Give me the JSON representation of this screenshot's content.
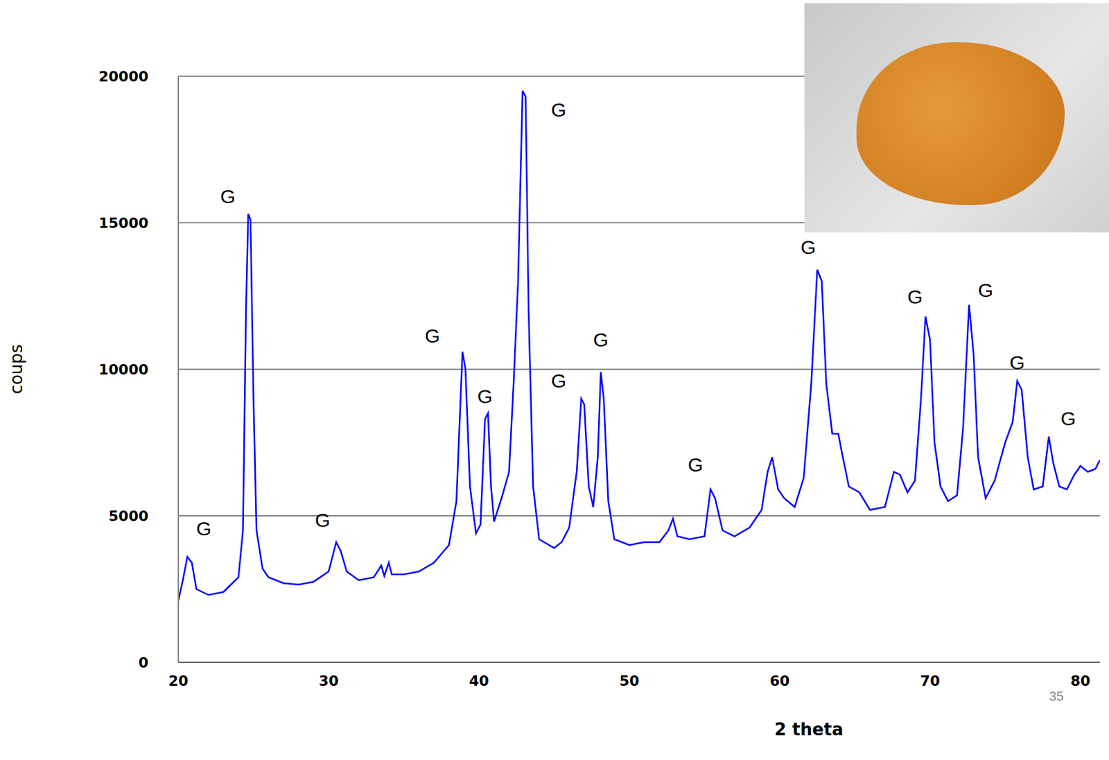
{
  "chart_data": {
    "type": "line",
    "x_label": "2 theta",
    "y_label": "coups",
    "page_number": "35",
    "xlim": [
      20,
      81.3
    ],
    "ylim": [
      0,
      20000
    ],
    "xticks": [
      20,
      30,
      40,
      50,
      60,
      70,
      80
    ],
    "yticks": [
      0,
      5000,
      10000,
      15000,
      20000
    ],
    "grid": true,
    "color": "#0000ff",
    "x": [
      20.0,
      20.3,
      20.6,
      20.9,
      21.2,
      22,
      23,
      24,
      24.3,
      24.5,
      24.65,
      24.8,
      25.0,
      25.2,
      25.6,
      26,
      27,
      28,
      29,
      30,
      30.5,
      30.8,
      31.2,
      32,
      33,
      33.5,
      33.7,
      34,
      34.2,
      35,
      36,
      37,
      38,
      38.5,
      38.9,
      39.1,
      39.4,
      39.8,
      40.1,
      40.4,
      40.6,
      40.8,
      41.0,
      41.5,
      42,
      42.3,
      42.6,
      42.9,
      43.1,
      43.3,
      43.6,
      44,
      45,
      45.5,
      46,
      46.5,
      46.8,
      47.0,
      47.3,
      47.6,
      47.9,
      48.1,
      48.3,
      48.6,
      49,
      50,
      51,
      52,
      52.6,
      52.9,
      53.2,
      54,
      55,
      55.4,
      55.7,
      56.2,
      57,
      58,
      58.8,
      59.2,
      59.5,
      59.9,
      60.3,
      61,
      61.6,
      62.1,
      62.5,
      62.8,
      63.1,
      63.5,
      63.9,
      64.2,
      64.6,
      65.3,
      66,
      67,
      67.6,
      68,
      68.5,
      69,
      69.4,
      69.7,
      70.0,
      70.3,
      70.7,
      71.2,
      71.8,
      72.2,
      72.6,
      72.9,
      73.2,
      73.7,
      74.3,
      75,
      75.5,
      75.8,
      76.1,
      76.5,
      76.9,
      77.5,
      77.9,
      78.2,
      78.6,
      79.1,
      79.6,
      80.0,
      80.5,
      81,
      81.3
    ],
    "values": [
      2100,
      2800,
      3600,
      3400,
      2500,
      2300,
      2400,
      2900,
      4500,
      12000,
      15300,
      15100,
      9000,
      4500,
      3200,
      2900,
      2700,
      2650,
      2750,
      3100,
      4100,
      3800,
      3100,
      2800,
      2900,
      3300,
      2950,
      3400,
      3000,
      3000,
      3100,
      3400,
      4000,
      5500,
      10600,
      10000,
      6000,
      4400,
      4700,
      8300,
      8500,
      6000,
      4800,
      5600,
      6500,
      9500,
      13000,
      19500,
      19300,
      12000,
      6000,
      4200,
      3900,
      4100,
      4600,
      6500,
      9000,
      8800,
      6000,
      5300,
      7000,
      9900,
      9000,
      5500,
      4200,
      4000,
      4100,
      4100,
      4500,
      4900,
      4300,
      4200,
      4300,
      5900,
      5600,
      4500,
      4300,
      4600,
      5200,
      6500,
      7000,
      5900,
      5600,
      5300,
      6300,
      9500,
      13400,
      13000,
      9500,
      7800,
      7800,
      7000,
      6000,
      5800,
      5200,
      5300,
      6500,
      6400,
      5800,
      6200,
      9000,
      11800,
      11000,
      7500,
      6000,
      5500,
      5700,
      8000,
      12200,
      10500,
      7000,
      5600,
      6200,
      7500,
      8200,
      9600,
      9300,
      7000,
      5900,
      6000,
      7700,
      6800,
      6000,
      5900,
      6400,
      6700,
      6500,
      6600,
      6900
    ],
    "annotations": [
      {
        "text": "G",
        "x": 21.7,
        "y": 4570
      },
      {
        "text": "G",
        "x": 23.3,
        "y": 15900
      },
      {
        "text": "G",
        "x": 29.6,
        "y": 4870
      },
      {
        "text": "G",
        "x": 36.9,
        "y": 11140
      },
      {
        "text": "G",
        "x": 40.4,
        "y": 9080
      },
      {
        "text": "G",
        "x": 45.3,
        "y": 18860
      },
      {
        "text": "G",
        "x": 45.3,
        "y": 9610
      },
      {
        "text": "G",
        "x": 48.1,
        "y": 11020
      },
      {
        "text": "G",
        "x": 54.4,
        "y": 6740
      },
      {
        "text": "G",
        "x": 61.9,
        "y": 14160
      },
      {
        "text": "G",
        "x": 69.0,
        "y": 12480
      },
      {
        "text": "G",
        "x": 73.7,
        "y": 12700
      },
      {
        "text": "G",
        "x": 75.8,
        "y": 10240
      },
      {
        "text": "G",
        "x": 79.2,
        "y": 8320
      }
    ]
  }
}
